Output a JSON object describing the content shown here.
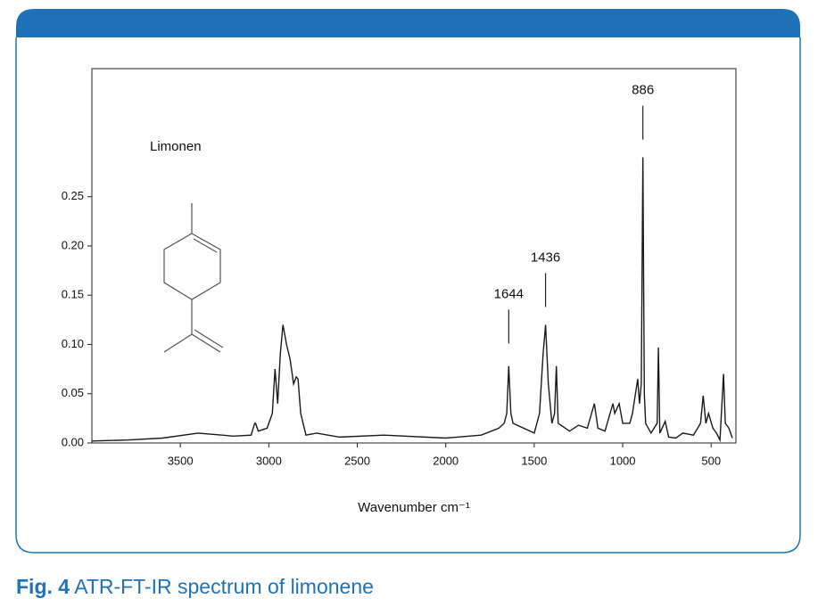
{
  "chart_data": {
    "type": "line",
    "x_label": "Wavenumber cm⁻¹",
    "caption_label": "Fig. 4",
    "caption": "ATR-FT-IR spectrum of limonene",
    "compound": "Limonen",
    "xlim": [
      4000,
      360
    ],
    "ylim": [
      0,
      0.38
    ],
    "xticks": [
      3500,
      3000,
      2500,
      2000,
      1500,
      1000,
      500
    ],
    "yticks": [
      {
        "value": 0,
        "label": "0.00"
      },
      {
        "value": 0.05,
        "label": "0.05"
      },
      {
        "value": 0.1,
        "label": "0.10"
      },
      {
        "value": 0.15,
        "label": "0.15"
      },
      {
        "value": 0.2,
        "label": "0.20"
      },
      {
        "value": 0.25,
        "label": "0.25"
      }
    ],
    "annotations": [
      {
        "label": "1644",
        "x": 1644,
        "y": 0.101
      },
      {
        "label": "1436",
        "x": 1436,
        "y": 0.138
      },
      {
        "label": "886",
        "x": 886,
        "y": 0.308
      }
    ],
    "series": [
      {
        "name": "Limonen",
        "color": "#1a1a1a",
        "x": [
          4000,
          3800,
          3600,
          3400,
          3200,
          3100,
          3080,
          3075,
          3060,
          3010,
          2980,
          2965,
          2950,
          2935,
          2920,
          2900,
          2880,
          2860,
          2845,
          2835,
          2820,
          2790,
          2730,
          2600,
          2350,
          2000,
          1800,
          1700,
          1670,
          1655,
          1644,
          1632,
          1620,
          1500,
          1470,
          1450,
          1436,
          1420,
          1400,
          1385,
          1375,
          1365,
          1300,
          1250,
          1200,
          1160,
          1140,
          1100,
          1055,
          1045,
          1020,
          1000,
          960,
          945,
          915,
          905,
          895,
          886,
          878,
          870,
          840,
          805,
          798,
          790,
          760,
          740,
          700,
          660,
          600,
          560,
          545,
          530,
          515,
          490,
          470,
          450,
          430,
          420,
          400,
          380
        ],
        "values": [
          0.002,
          0.003,
          0.005,
          0.01,
          0.007,
          0.008,
          0.02,
          0.02,
          0.012,
          0.015,
          0.03,
          0.075,
          0.04,
          0.09,
          0.12,
          0.1,
          0.085,
          0.06,
          0.067,
          0.065,
          0.03,
          0.008,
          0.01,
          0.006,
          0.008,
          0.005,
          0.008,
          0.015,
          0.02,
          0.03,
          0.078,
          0.03,
          0.02,
          0.01,
          0.03,
          0.09,
          0.12,
          0.06,
          0.02,
          0.03,
          0.078,
          0.02,
          0.012,
          0.018,
          0.015,
          0.04,
          0.015,
          0.012,
          0.04,
          0.03,
          0.04,
          0.02,
          0.02,
          0.03,
          0.065,
          0.04,
          0.06,
          0.29,
          0.05,
          0.02,
          0.01,
          0.02,
          0.097,
          0.01,
          0.022,
          0.006,
          0.005,
          0.01,
          0.008,
          0.02,
          0.048,
          0.02,
          0.03,
          0.015,
          0.01,
          0.003,
          0.07,
          0.02,
          0.015,
          0.005
        ]
      }
    ]
  }
}
